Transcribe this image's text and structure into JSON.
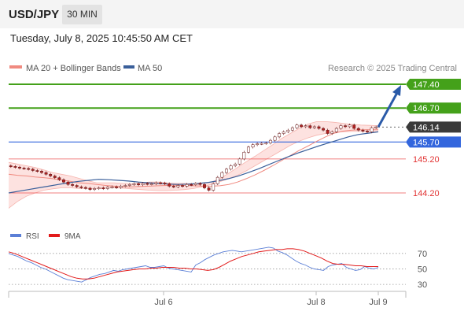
{
  "header": {
    "symbol": "USD/JPY",
    "timeframe": "30 MIN"
  },
  "datetime": "Tuesday, July 8, 2025 10:45:50 AM CET",
  "legend": {
    "items": [
      {
        "label": "MA 20 + Bollinger Bands",
        "color": "#f08a80"
      },
      {
        "label": "MA 50",
        "color": "#3a5f9a"
      }
    ],
    "credit": "Research © 2025 Trading Central"
  },
  "rsi_legend": {
    "items": [
      {
        "label": "RSI",
        "color": "#5b7fd6"
      },
      {
        "label": "9MA",
        "color": "#e21b1b"
      }
    ]
  },
  "colors": {
    "up_candle": "#ffffff",
    "down_candle": "#b02020",
    "candle_wick": "#6a1a1a",
    "resistance": "#44a11a",
    "pivot": "#3366dd",
    "support": "#ee5555",
    "current_tag": "#3a3a3a",
    "arrow": "#2a5aa8",
    "band_fill": "#fde2e0"
  },
  "chart_data": [
    {
      "type": "candlestick",
      "price_levels": [
        {
          "label": "147.40",
          "value": 147.4,
          "kind": "resistance"
        },
        {
          "label": "146.70",
          "value": 146.7,
          "kind": "resistance"
        },
        {
          "label": "146.14",
          "value": 146.14,
          "kind": "current"
        },
        {
          "label": "145.70",
          "value": 145.7,
          "kind": "pivot"
        },
        {
          "label": "145.20",
          "value": 145.2,
          "kind": "support"
        },
        {
          "label": "144.20",
          "value": 144.2,
          "kind": "support"
        }
      ],
      "target": 147.4,
      "close_series": [
        144.98,
        144.96,
        144.93,
        144.92,
        144.9,
        144.86,
        144.84,
        144.8,
        144.75,
        144.7,
        144.65,
        144.59,
        144.52,
        144.45,
        144.42,
        144.38,
        144.36,
        144.34,
        144.3,
        144.33,
        144.35,
        144.33,
        144.37,
        144.38,
        144.36,
        144.4,
        144.42,
        144.45,
        144.47,
        144.44,
        144.48,
        144.46,
        144.47,
        144.5,
        144.49,
        144.47,
        144.4,
        144.38,
        144.42,
        144.4,
        144.45,
        144.44,
        144.48,
        144.45,
        144.35,
        144.28,
        144.47,
        144.66,
        144.8,
        144.9,
        145.0,
        145.05,
        145.2,
        145.4,
        145.55,
        145.62,
        145.65,
        145.66,
        145.67,
        145.75,
        145.85,
        145.95,
        146.0,
        146.05,
        146.12,
        146.2,
        146.15,
        146.18,
        146.12,
        146.15,
        146.1,
        146.05,
        145.95,
        146.0,
        146.1,
        146.18,
        146.15,
        146.2,
        146.1,
        146.05,
        146.02,
        146.0,
        146.12,
        146.14
      ],
      "ma20": [
        144.75,
        144.72,
        144.7,
        144.67,
        144.65,
        144.62,
        144.58,
        144.54,
        144.5,
        144.48,
        144.45,
        144.42,
        144.4,
        144.38,
        144.38,
        144.39,
        144.4,
        144.41,
        144.42,
        144.43,
        144.42,
        144.41,
        144.4,
        144.4,
        144.41,
        144.45,
        144.52,
        144.62,
        144.73,
        144.86,
        145.0,
        145.15,
        145.3,
        145.45,
        145.58,
        145.72,
        145.85,
        145.96,
        146.02,
        146.05,
        146.06,
        146.06,
        146.06
      ],
      "ma50": [
        144.2,
        144.25,
        144.3,
        144.35,
        144.4,
        144.45,
        144.5,
        144.54,
        144.57,
        144.6,
        144.59,
        144.57,
        144.55,
        144.52,
        144.5,
        144.48,
        144.46,
        144.45,
        144.46,
        144.48,
        144.51,
        144.56,
        144.62,
        144.7,
        144.8,
        144.91,
        145.03,
        145.15,
        145.27,
        145.38,
        145.48,
        145.58,
        145.67,
        145.76,
        145.85,
        145.92,
        145.96,
        146.0
      ],
      "bb_upper": [
        145.1,
        145.05,
        145.0,
        144.95,
        144.88,
        144.8,
        144.75,
        144.7,
        144.63,
        144.56,
        144.5,
        144.5,
        144.5,
        144.48,
        144.47,
        144.5,
        144.52,
        144.52,
        144.5,
        144.48,
        144.48,
        144.47,
        144.48,
        144.52,
        144.62,
        144.78,
        144.95,
        145.12,
        145.28,
        145.45,
        145.62,
        145.8,
        145.95,
        146.1,
        146.23,
        146.3,
        146.3,
        146.28,
        146.25,
        146.22,
        146.2,
        146.19,
        146.18
      ],
      "bb_lower": [
        143.75,
        143.95,
        144.1,
        144.2,
        144.28,
        144.32,
        144.35,
        144.35,
        144.33,
        144.33,
        144.33,
        144.34,
        144.35,
        144.34,
        144.32,
        144.3,
        144.28,
        144.27,
        144.27,
        144.28,
        144.3,
        144.33,
        144.38,
        144.45,
        144.53,
        144.62,
        144.72,
        144.85,
        145.0,
        145.15,
        145.3,
        145.45,
        145.6,
        145.72,
        145.82,
        145.9,
        145.95,
        145.98,
        146.0,
        146.01,
        146.01,
        146.0,
        146.0
      ]
    },
    {
      "type": "line",
      "title": "RSI",
      "yticks": [
        70,
        50,
        30
      ],
      "ylim": [
        23,
        82
      ],
      "series": [
        {
          "name": "RSI",
          "values": [
            70,
            68,
            66,
            63,
            60,
            58,
            55,
            52,
            50,
            47,
            44,
            41,
            38,
            36,
            35,
            34,
            33,
            36,
            39,
            41,
            43,
            44,
            46,
            48,
            47,
            49,
            50,
            51,
            52,
            53,
            54,
            52,
            52,
            53,
            54,
            51,
            50,
            49,
            48,
            47,
            46,
            55,
            58,
            62,
            65,
            68,
            70,
            72,
            73,
            74,
            73,
            72,
            73,
            74,
            75,
            76,
            77,
            78,
            77,
            73,
            71,
            68,
            64,
            60,
            57,
            55,
            52,
            50,
            49,
            48,
            53,
            55,
            56,
            57,
            52,
            50,
            48,
            49,
            53,
            51,
            50,
            52
          ],
          "color": "#5b7fd6"
        },
        {
          "name": "9MA",
          "values": [
            72,
            70,
            67,
            64,
            61,
            58,
            55,
            52,
            49,
            46,
            43,
            40,
            38,
            37,
            37,
            38,
            40,
            42,
            44,
            46,
            47,
            48,
            49,
            50,
            50,
            51,
            51,
            52,
            52,
            52,
            51,
            51,
            50,
            50,
            49,
            48,
            49,
            52,
            56,
            60,
            63,
            66,
            68,
            70,
            72,
            73,
            74,
            75,
            75,
            76,
            76,
            75,
            73,
            70,
            67,
            64,
            60,
            57,
            56,
            56,
            55,
            54,
            54,
            53,
            53,
            53
          ],
          "color": "#e21b1b"
        }
      ]
    }
  ],
  "x_axis": {
    "ticks": [
      "Jul 6",
      "Jul 8",
      "Jul 9"
    ]
  }
}
